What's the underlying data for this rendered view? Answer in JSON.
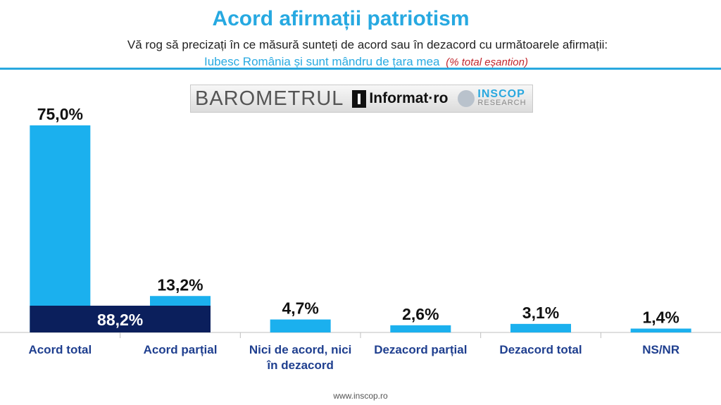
{
  "header": {
    "title": "Acord afirmații patriotism",
    "question": "Vă rog să precizați în ce măsură sunteți de acord sau în dezacord cu următoarele afirmații:",
    "statement": "Iubesc România și sunt mândru de țara mea",
    "note": "(% total eșantion)"
  },
  "logo": {
    "barometru": "BAROMETRUL",
    "informat": "Informat·ro",
    "inscop": "INSCOP",
    "research": "RESEARCH"
  },
  "footer": {
    "url": "www.inscop.ro"
  },
  "chart_data": {
    "type": "bar",
    "title": "Acord afirmații patriotism",
    "categories": [
      "Acord total",
      "Acord parțial",
      "Nici de acord, nici în dezacord",
      "Dezacord parțial",
      "Dezacord total",
      "NS/NR"
    ],
    "values": [
      75.0,
      13.2,
      4.7,
      2.6,
      3.1,
      1.4
    ],
    "value_labels": [
      "75,0%",
      "13,2%",
      "4,7%",
      "2,6%",
      "3,1%",
      "1,4%"
    ],
    "ylim": [
      0,
      75
    ],
    "annotation": {
      "label": "88,2%",
      "value": 88.2,
      "spans": [
        "Acord total",
        "Acord parțial"
      ]
    },
    "colors": {
      "bar": "#1bb0ee",
      "annotation": "#0b1f5c"
    },
    "xlabel": "",
    "ylabel": ""
  }
}
